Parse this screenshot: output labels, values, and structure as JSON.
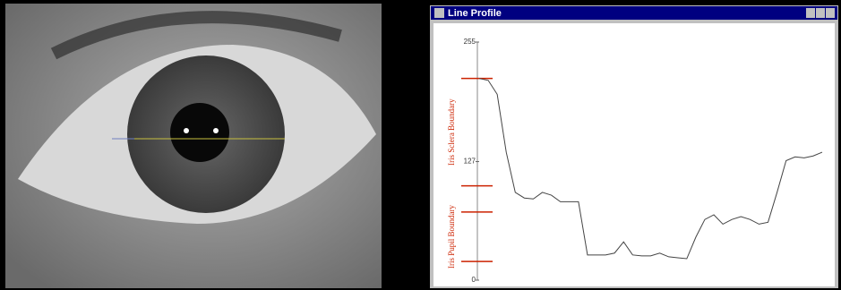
{
  "window": {
    "title": "Line Profile"
  },
  "chart_data": {
    "type": "line",
    "values": [
      216,
      214,
      199,
      137,
      94,
      88,
      87,
      94,
      91,
      84,
      84,
      84,
      27,
      27,
      27,
      29,
      41,
      27,
      26,
      26,
      29,
      25,
      24,
      23,
      46,
      65,
      70,
      60,
      65,
      68,
      65,
      60,
      62,
      94,
      128,
      132,
      131,
      133,
      137
    ],
    "color": "#444444",
    "ylim": [
      0,
      255
    ],
    "yticks": [
      0,
      127,
      255
    ],
    "boundary_marks": [
      216,
      101,
      73,
      20
    ],
    "boundary_color": "#cc2200",
    "annotations": [
      "Iris Sclera Boundary",
      "Iris Pupil Boundary"
    ]
  }
}
